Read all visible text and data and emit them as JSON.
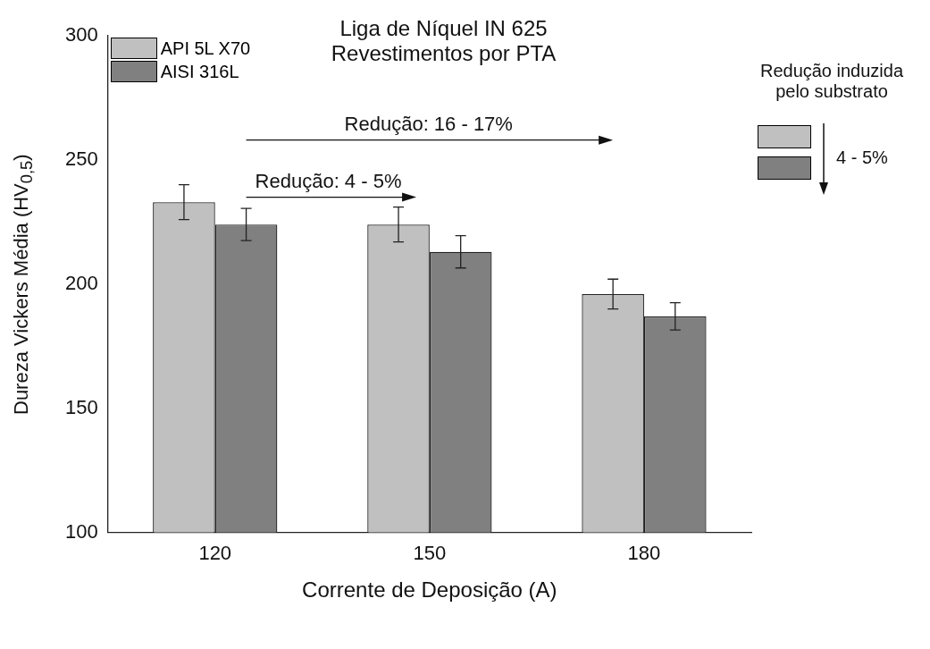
{
  "chart_data": {
    "type": "bar",
    "title": "Liga de Níquel IN 625",
    "subtitle": "Revestimentos por PTA",
    "xlabel": "Corrente de Deposição (A)",
    "ylabel": "Dureza Vickers Média (HV$_{0,5}$)",
    "categories": [
      "120",
      "150",
      "180"
    ],
    "series": [
      {
        "name": "API 5L X70",
        "color": "#c0c0c0",
        "values": [
          233,
          224,
          196
        ],
        "errors": [
          7,
          7,
          6
        ]
      },
      {
        "name": "AISI 316L",
        "color": "#808080",
        "values": [
          224,
          213,
          187
        ],
        "errors": [
          6.5,
          6.5,
          5.5
        ]
      }
    ],
    "ylim": [
      100,
      300
    ],
    "yticks": [
      100,
      150,
      200,
      250,
      300
    ],
    "grid": false,
    "legend": "top left",
    "annotations": [
      "Redução: 16 - 17%",
      "Redução: 4 - 5%",
      "Redução induzida pelo substrato",
      "4 - 5%"
    ]
  }
}
